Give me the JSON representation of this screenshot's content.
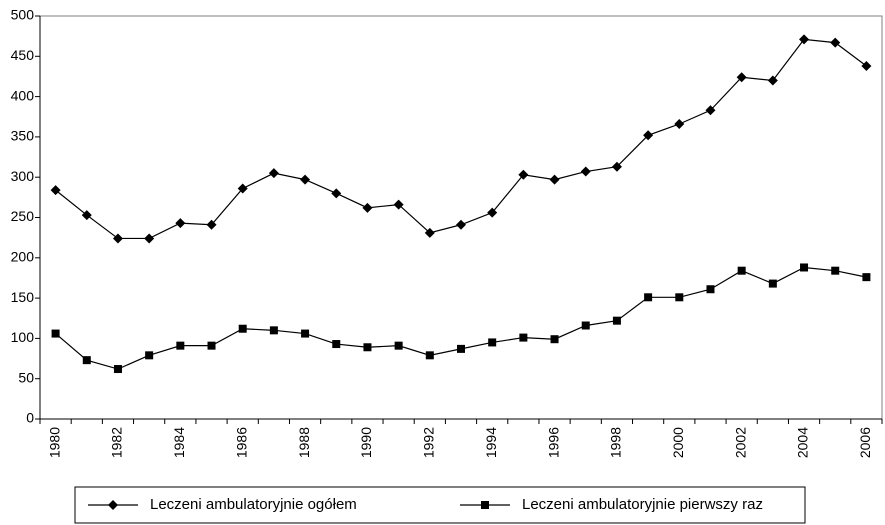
{
  "chart_data": {
    "type": "line",
    "categories": [
      "1980",
      null,
      "1982",
      null,
      "1984",
      null,
      "1986",
      null,
      "1988",
      null,
      "1990",
      null,
      "1992",
      null,
      "1994",
      null,
      "1996",
      null,
      "1998",
      null,
      "2000",
      null,
      "2002",
      null,
      "2004",
      null,
      "2006"
    ],
    "series": [
      {
        "name": "Leczeni ambulatoryjnie ogółem",
        "color": "#000000",
        "marker": "diamond",
        "values": [
          284,
          253,
          224,
          224,
          243,
          241,
          286,
          305,
          297,
          280,
          262,
          266,
          231,
          241,
          256,
          303,
          297,
          307,
          313,
          352,
          366,
          383,
          424,
          420,
          471,
          467,
          438
        ]
      },
      {
        "name": "Leczeni ambulatoryjnie pierwszy raz",
        "color": "#000000",
        "marker": "square",
        "values": [
          106,
          73,
          62,
          79,
          91,
          91,
          112,
          110,
          106,
          93,
          89,
          91,
          79,
          87,
          95,
          101,
          99,
          116,
          122,
          151,
          151,
          161,
          184,
          168,
          188,
          184,
          176
        ]
      }
    ],
    "ylim": [
      0,
      500
    ],
    "yticks": [
      0,
      50,
      100,
      150,
      200,
      250,
      300,
      350,
      400,
      450,
      500
    ],
    "grid": false
  }
}
